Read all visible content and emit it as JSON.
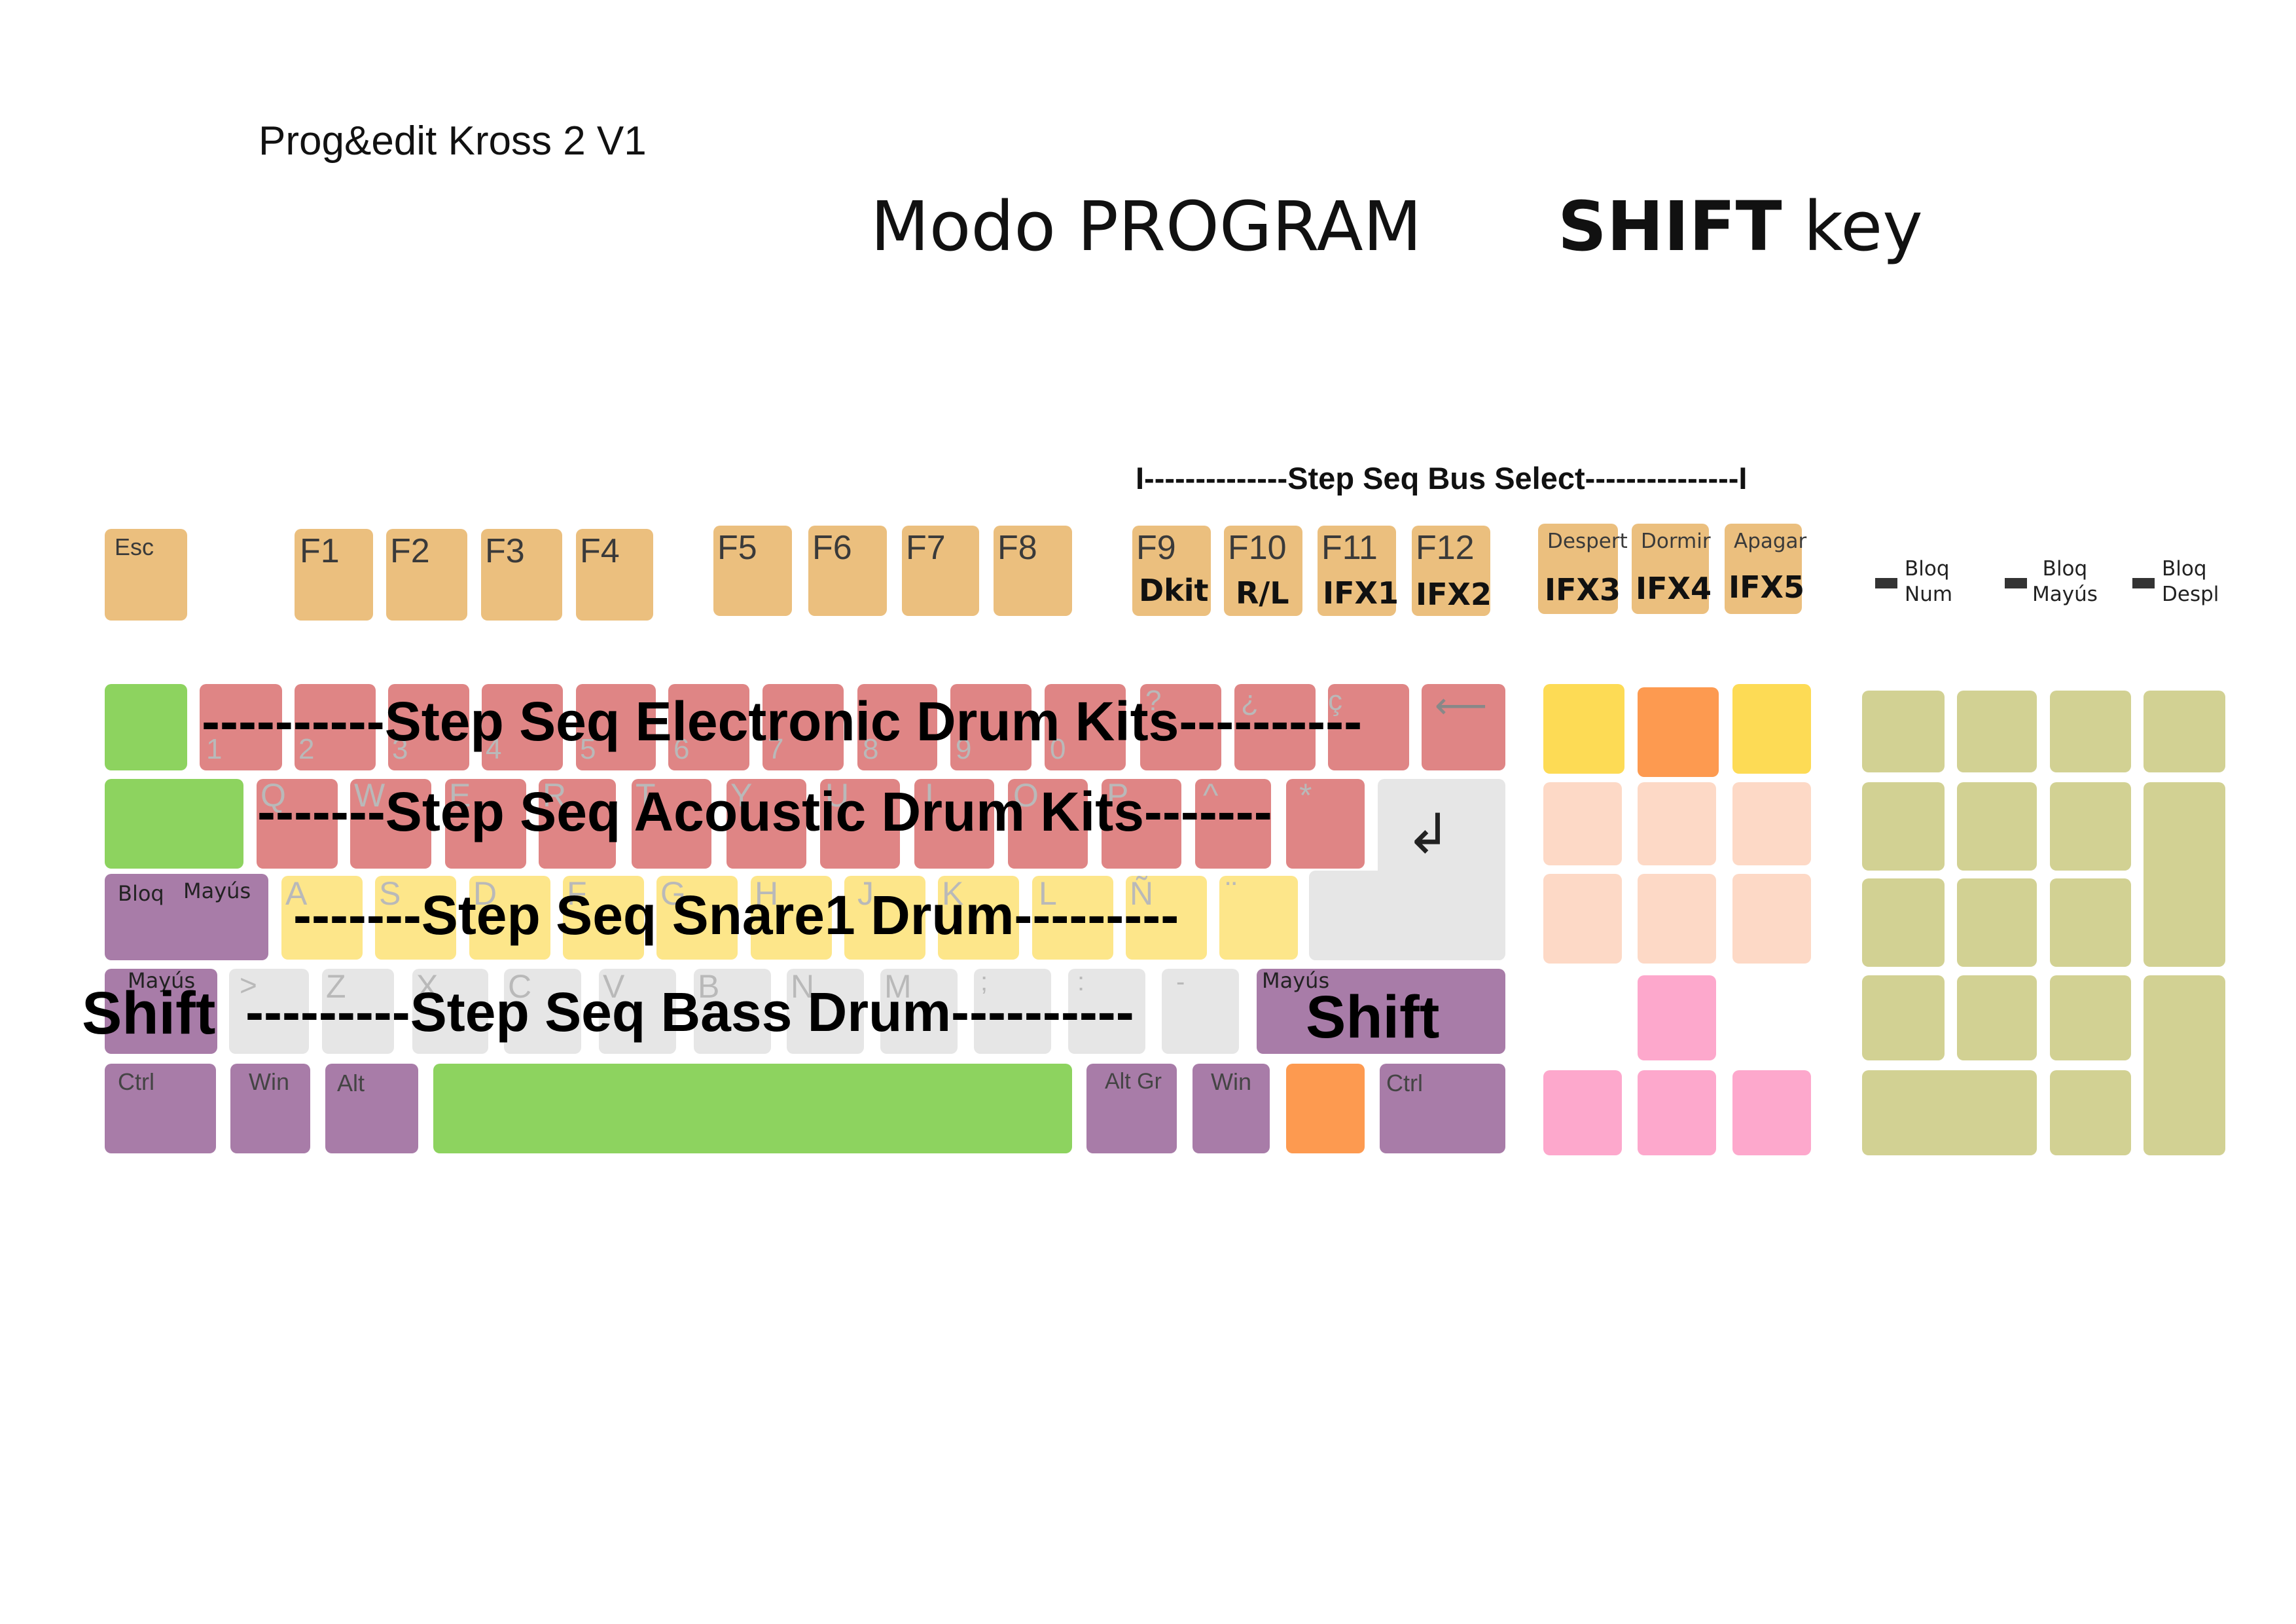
{
  "header": {
    "doc_title": "Prog&edit Kross 2 V1",
    "mode_title": "Modo PROGRAM",
    "shift_bold": "SHIFT",
    "shift_rest": " key"
  },
  "bus_select": "I--------------Step Seq Bus Select---------------I",
  "function_row": {
    "esc": "Esc",
    "f_keys": [
      "F1",
      "F2",
      "F3",
      "F4",
      "F5",
      "F6",
      "F7",
      "F8",
      "F9",
      "F10",
      "F11",
      "F12"
    ],
    "f_sub": {
      "f9": "Dkit",
      "f10": "R/L",
      "f11": "IFX1",
      "f12": "IFX2"
    },
    "power_keys": [
      "Despert",
      "Dormir",
      "Apagar"
    ],
    "power_sub": [
      "IFX3",
      "IFX4",
      "IFX5"
    ]
  },
  "indicators": [
    {
      "line1": "Bloq",
      "line2": "Num"
    },
    {
      "line1": "Bloq",
      "line2": "Mayús"
    },
    {
      "line1": "Bloq",
      "line2": "Despl"
    }
  ],
  "rows": {
    "electronic": "----------Step Seq Electronic Drum Kits----------",
    "acoustic": "-------Step Seq Acoustic Drum Kits-------",
    "snare": "-------Step Seq Snare1 Drum---------",
    "bass": "---------Step Seq Bass Drum----------"
  },
  "number_row_labels": [
    "1",
    "2",
    "3",
    "4",
    "5",
    "6",
    "7",
    "8",
    "9",
    "0"
  ],
  "number_row_top": [
    "?",
    "¿",
    "ç"
  ],
  "backspace_symbol": "⟵",
  "q_row_labels": [
    "Q",
    "W",
    "E",
    "R",
    "T",
    "Y",
    "U",
    "I",
    "O",
    "P",
    "^",
    "*"
  ],
  "enter_symbol": "↲",
  "a_row_labels": [
    "A",
    "S",
    "D",
    "F",
    "G",
    "H",
    "J",
    "K",
    "L",
    "Ñ",
    "¨"
  ],
  "z_row_labels": [
    ">",
    "Z",
    "X",
    "C",
    "V",
    "B",
    "N",
    "M",
    ";",
    ":",
    "-"
  ],
  "modifiers": {
    "caps_bloq": "Bloq",
    "caps_mayus": "Mayús",
    "shift_small": "Mayús",
    "shift_big": "Shift",
    "ctrl": "Ctrl",
    "win": "Win",
    "alt": "Alt",
    "altgr": "Alt Gr"
  },
  "colors": {
    "function_keys": "#ebbf7e",
    "electronic_row": "#df8585",
    "special_green": "#8dd35f",
    "modifiers": "#a87ca8",
    "snare_row": "#fde68a",
    "bass_row": "#e6e6e6",
    "numpad": "#d2d193",
    "nav_cluster": "#fdd9c6",
    "arrows": "#fda8cc",
    "orange": "#fd9a50",
    "gold": "#fddb55"
  }
}
